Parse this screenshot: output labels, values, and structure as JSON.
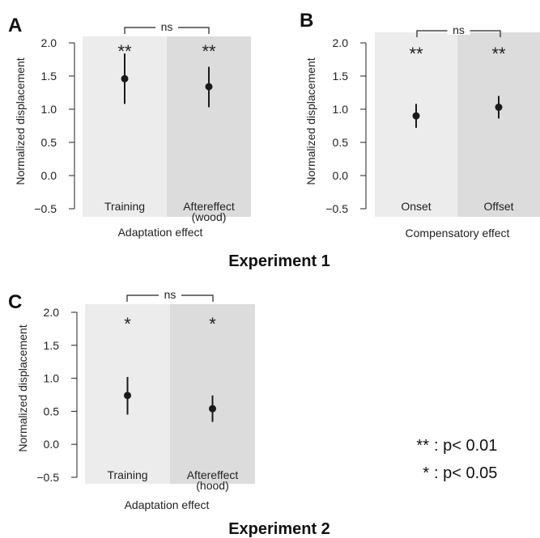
{
  "chart_data": [
    {
      "panel": "A",
      "type": "scatter",
      "categories": [
        "Training",
        "Aftereffect\n(wood)"
      ],
      "values": [
        1.46,
        1.34
      ],
      "error_low": [
        1.08,
        1.03
      ],
      "error_high": [
        1.84,
        1.64
      ],
      "significance": [
        "**",
        "**"
      ],
      "comparison": "ns",
      "xlabel": "Adaptation effect",
      "ylabel": "Normalized displacement",
      "ylim": [
        -0.5,
        2.0
      ],
      "yticks": [
        "2.0",
        "1.5",
        "1.0",
        "0.5",
        "0.0",
        "−0.5"
      ],
      "colors": {
        "bg1": "#ececec",
        "bg2": "#dcdcdc",
        "marker": "#1a1a1a"
      }
    },
    {
      "panel": "B",
      "type": "scatter",
      "categories": [
        "Onset",
        "Offset"
      ],
      "values": [
        0.9,
        1.03
      ],
      "error_low": [
        0.72,
        0.86
      ],
      "error_high": [
        1.08,
        1.2
      ],
      "significance": [
        "**",
        "**"
      ],
      "comparison": "ns",
      "xlabel": "Compensatory effect",
      "ylabel": "Normalized displacement",
      "ylim": [
        -0.5,
        2.0
      ],
      "yticks": [
        "2.0",
        "1.5",
        "1.0",
        "0.5",
        "0.0",
        "−0.5"
      ],
      "colors": {
        "bg1": "#ececec",
        "bg2": "#dcdcdc",
        "marker": "#1a1a1a"
      }
    },
    {
      "panel": "C",
      "type": "scatter",
      "categories": [
        "Training",
        "Aftereffect\n(hood)"
      ],
      "values": [
        0.74,
        0.54
      ],
      "error_low": [
        0.45,
        0.34
      ],
      "error_high": [
        1.02,
        0.74
      ],
      "significance": [
        "*",
        "*"
      ],
      "comparison": "ns",
      "xlabel": "Adaptation effect",
      "ylabel": "Normalized displacement",
      "ylim": [
        -0.5,
        2.0
      ],
      "yticks": [
        "2.0",
        "1.5",
        "1.0",
        "0.5",
        "0.0",
        "−0.5"
      ],
      "colors": {
        "bg1": "#ececec",
        "bg2": "#dcdcdc",
        "marker": "#1a1a1a"
      }
    }
  ],
  "experiment_labels": [
    "Experiment 1",
    "Experiment 2"
  ],
  "legend": [
    {
      "symbol": "**",
      "text": ": p< 0.01"
    },
    {
      "symbol": "*",
      "text": ": p< 0.05"
    }
  ]
}
